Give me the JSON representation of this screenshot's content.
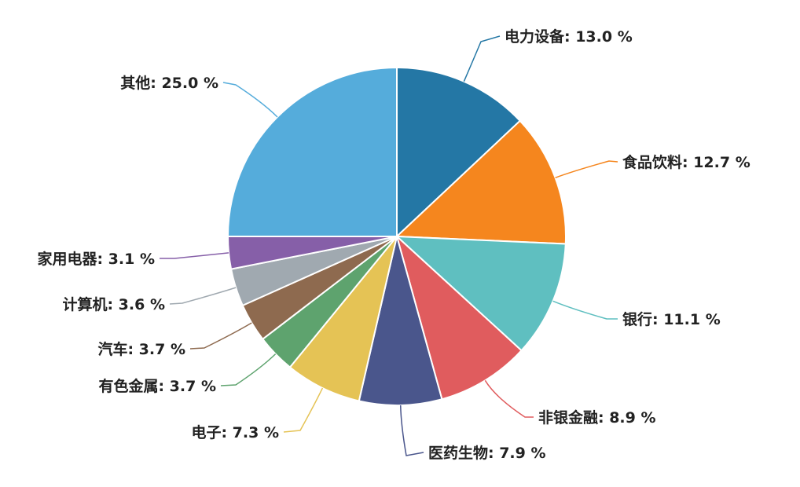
{
  "chart_data": {
    "type": "pie",
    "title": "",
    "legend": "none",
    "slices": [
      {
        "name": "电力设备",
        "value": 13.0,
        "color": "#2477a5",
        "label": "电力设备: 13.0 %"
      },
      {
        "name": "食品饮料",
        "value": 12.7,
        "color": "#f5861e",
        "label": "食品饮料: 12.7 %"
      },
      {
        "name": "银行",
        "value": 11.1,
        "color": "#5fbfc0",
        "label": "银行: 11.1 %"
      },
      {
        "name": "非银金融",
        "value": 8.9,
        "color": "#e05c5e",
        "label": "非银金融: 8.9 %"
      },
      {
        "name": "医药生物",
        "value": 7.9,
        "color": "#4a568c",
        "label": "医药生物: 7.9 %"
      },
      {
        "name": "电子",
        "value": 7.3,
        "color": "#e5c355",
        "label": "电子: 7.3 %"
      },
      {
        "name": "有色金属",
        "value": 3.7,
        "color": "#5ea36e",
        "label": "有色金属: 3.7 %"
      },
      {
        "name": "汽车",
        "value": 3.7,
        "color": "#8e6a4f",
        "label": "汽车: 3.7 %"
      },
      {
        "name": "计算机",
        "value": 3.6,
        "color": "#a0a9b0",
        "label": "计算机: 3.6 %"
      },
      {
        "name": "家用电器",
        "value": 3.1,
        "color": "#865fa8",
        "label": "家用电器: 3.1 %"
      },
      {
        "name": "其他",
        "value": 25.0,
        "color": "#55acdb",
        "label": "其他: 25.0 %"
      }
    ]
  }
}
